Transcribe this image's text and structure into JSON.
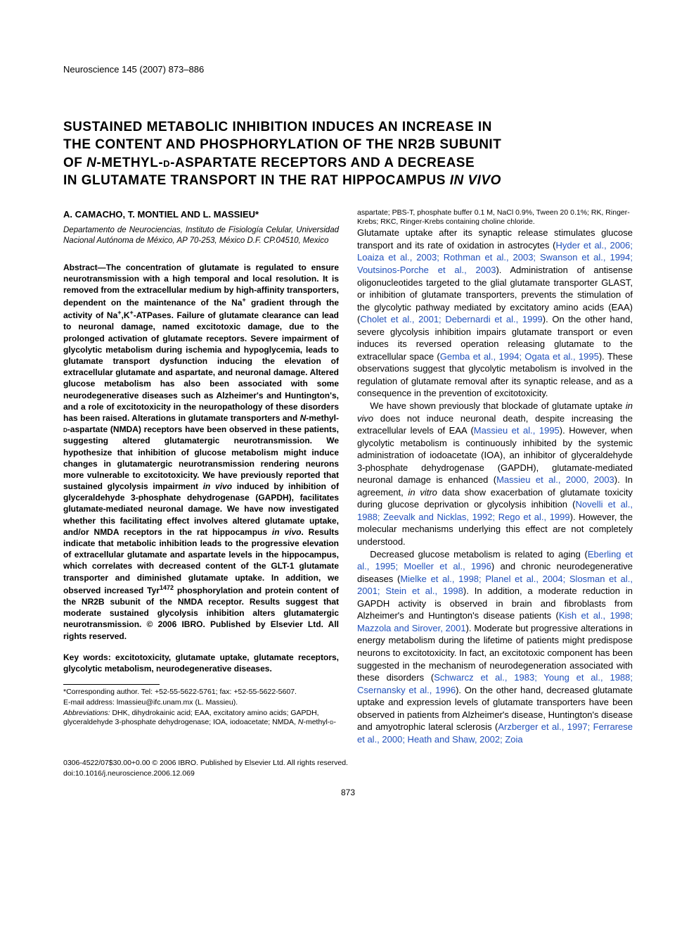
{
  "journal_header": "Neuroscience 145 (2007) 873–886",
  "title_lines": [
    "SUSTAINED METABOLIC INHIBITION INDUCES AN INCREASE IN",
    "THE CONTENT AND PHOSPHORYLATION OF THE NR2B SUBUNIT",
    "OF N-METHYL-D-ASPARTATE RECEPTORS AND A DECREASE",
    "IN GLUTAMATE TRANSPORT IN THE RAT HIPPOCAMPUS IN VIVO"
  ],
  "authors": "A. CAMACHO, T. MONTIEL AND L. MASSIEU*",
  "affiliation": "Departamento de Neurociencias, Instituto de Fisiología Celular, Universidad Nacional Autónoma de México, AP 70-253, México D.F. CP.04510, Mexico",
  "abstract_label": "Abstract—",
  "abstract_body": "The concentration of glutamate is regulated to ensure neurotransmission with a high temporal and local resolution. It is removed from the extracellular medium by high-affinity transporters, dependent on the maintenance of the Na+ gradient through the activity of Na+,K+-ATPases. Failure of glutamate clearance can lead to neuronal damage, named excitotoxic damage, due to the prolonged activation of glutamate receptors. Severe impairment of glycolytic metabolism during ischemia and hypoglycemia, leads to glutamate transport dysfunction inducing the elevation of extracellular glutamate and aspartate, and neuronal damage. Altered glucose metabolism has also been associated with some neurodegenerative diseases such as Alzheimer's and Huntington's, and a role of excitotoxicity in the neuropathology of these disorders has been raised. Alterations in glutamate transporters and N-methyl-D-aspartate (NMDA) receptors have been observed in these patients, suggesting altered glutamatergic neurotransmission. We hypothesize that inhibition of glucose metabolism might induce changes in glutamatergic neurotransmission rendering neurons more vulnerable to excitotoxicity. We have previously reported that sustained glycolysis impairment in vivo induced by inhibition of glyceraldehyde 3-phosphate dehydrogenase (GAPDH), facilitates glutamate-mediated neuronal damage. We have now investigated whether this facilitating effect involves altered glutamate uptake, and/or NMDA receptors in the rat hippocampus in vivo. Results indicate that metabolic inhibition leads to the progressive elevation of extracellular glutamate and aspartate levels in the hippocampus, which correlates with decreased content of the GLT-1 glutamate transporter and diminished glutamate uptake. In addition, we observed increased Tyr1472 phosphorylation and protein content of the NR2B subunit of the NMDA receptor. Results suggest that moderate sustained glycolysis inhibition alters glutamatergic neurotransmission. © 2006 IBRO. Published by Elsevier Ltd. All rights reserved.",
  "keywords": "Key words: excitotoxicity, glutamate uptake, glutamate receptors, glycolytic metabolism, neurodegenerative diseases.",
  "footnote_corresponding": "*Corresponding author. Tel: +52-55-5622-5761; fax: +52-55-5622-5607.",
  "footnote_email": "E-mail address: lmassieu@ifc.unam.mx (L. Massieu).",
  "footnote_abbrev_label": "Abbreviations:",
  "footnote_abbrev_body": " DHK, dihydrokainic acid; EAA, excitatory amino acids; GAPDH, glyceraldehyde 3-phosphate dehydrogenase; IOA, iodoacetate; NMDA, N-methyl-D-aspartate; PBS-T, phosphate buffer 0.1 M, NaCl 0.9%, Tween 20 0.1%; RK, Ringer-Krebs; RKC, Ringer-Krebs containing choline chloride.",
  "body": {
    "p1_a": "Glutamate uptake after its synaptic release stimulates glucose transport and its rate of oxidation in astrocytes (",
    "p1_ref1": "Hyder et al., 2006; Loaiza et al., 2003; Rothman et al., 2003; Swanson et al., 1994; Voutsinos-Porche et al., 2003",
    "p1_b": "). Administration of antisense oligonucleotides targeted to the glial glutamate transporter GLAST, or inhibition of glutamate transporters, prevents the stimulation of the glycolytic pathway mediated by excitatory amino acids (EAA) (",
    "p1_ref2": "Cholet et al., 2001; Debernardi et al., 1999",
    "p1_c": "). On the other hand, severe glycolysis inhibition impairs glutamate transport or even induces its reversed operation releasing glutamate to the extracellular space (",
    "p1_ref3": "Gemba et al., 1994; Ogata et al., 1995",
    "p1_d": "). These observations suggest that glycolytic metabolism is involved in the regulation of glutamate removal after its synaptic release, and as a consequence in the prevention of excitotoxicity.",
    "p2_a": "We have shown previously that blockade of glutamate uptake in vivo does not induce neuronal death, despite increasing the extracellular levels of EAA (",
    "p2_ref1": "Massieu et al., 1995",
    "p2_b": "). However, when glycolytic metabolism is continuously inhibited by the systemic administration of iodoacetate (IOA), an inhibitor of glyceraldehyde 3-phosphate dehydrogenase (GAPDH), glutamate-mediated neuronal damage is enhanced (",
    "p2_ref2": "Massieu et al., 2000, 2003",
    "p2_c": "). In agreement, in vitro data show exacerbation of glutamate toxicity during glucose deprivation or glycolysis inhibition (",
    "p2_ref3": "Novelli et al., 1988; Zeevalk and Nicklas, 1992; Rego et al., 1999",
    "p2_d": "). However, the molecular mechanisms underlying this effect are not completely understood.",
    "p3_a": "Decreased glucose metabolism is related to aging (",
    "p3_ref1": "Eberling et al., 1995; Moeller et al., 1996",
    "p3_b": ") and chronic neurodegenerative diseases (",
    "p3_ref2": "Mielke et al., 1998; Planel et al., 2004; Slosman et al., 2001; Stein et al., 1998",
    "p3_c": "). In addition, a moderate reduction in GAPDH activity is observed in brain and fibroblasts from Alzheimer's and Huntington's disease patients (",
    "p3_ref3": "Kish et al., 1998; Mazzola and Sirover, 2001",
    "p3_d": "). Moderate but progressive alterations in energy metabolism during the lifetime of patients might predispose neurons to excitotoxicity. In fact, an excitotoxic component has been suggested in the mechanism of neurodegeneration associated with these disorders (",
    "p3_ref4": "Schwarcz et al., 1983; Young et al., 1988; Csernansky et al., 1996",
    "p3_e": "). On the other hand, decreased glutamate uptake and expression levels of glutamate transporters have been observed in patients from Alzheimer's disease, Huntington's disease and amyotrophic lateral sclerosis (",
    "p3_ref5": "Arzberger et al., 1997; Ferrarese et al., 2000; Heath and Shaw, 2002; Zoia"
  },
  "copyright": "0306-4522/07$30.00+0.00 © 2006 IBRO. Published by Elsevier Ltd. All rights reserved.",
  "doi": "doi:10.1016/j.neuroscience.2006.12.069",
  "page_number": "873",
  "colors": {
    "ref_link": "#2050bb",
    "text": "#000000",
    "background": "#ffffff"
  }
}
